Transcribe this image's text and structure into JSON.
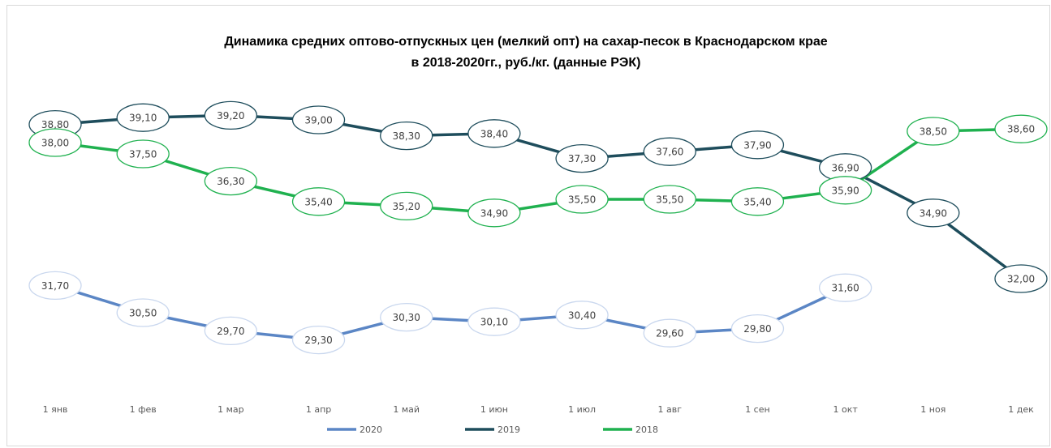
{
  "chart_data": {
    "type": "line",
    "title": [
      "Динамика средних оптово-отпускных цен (мелкий опт) на сахар-песок в Краснодарском крае",
      "в 2018-2020гг., руб./кг. (данные РЭК)"
    ],
    "categories": [
      "1 янв",
      "1 фев",
      "1 мар",
      "1 апр",
      "1 май",
      "1 июн",
      "1 июл",
      "1 авг",
      "1 сен",
      "1 окт",
      "1 ноя",
      "1 дек"
    ],
    "ylim": [
      27,
      41
    ],
    "legend": "bottom",
    "series": [
      {
        "name": "2020",
        "color": "#5b86c5",
        "label_border": "#c9d7ee",
        "values": [
          31.7,
          30.5,
          29.7,
          29.3,
          30.3,
          30.1,
          30.4,
          29.6,
          29.8,
          31.6,
          null,
          null
        ],
        "value_labels": [
          "31,70",
          "30,50",
          "29,70",
          "29,30",
          "30,30",
          "30,10",
          "30,40",
          "29,60",
          "29,80",
          "31,60",
          null,
          null
        ]
      },
      {
        "name": "2019",
        "color": "#1e4d5c",
        "label_border": "#1e4d5c",
        "values": [
          38.8,
          39.1,
          39.2,
          39.0,
          38.3,
          38.4,
          37.3,
          37.6,
          37.9,
          36.9,
          34.9,
          32.0
        ],
        "value_labels": [
          "38,80",
          "39,10",
          "39,20",
          "39,00",
          "38,30",
          "38,40",
          "37,30",
          "37,60",
          "37,90",
          "36,90",
          "34,90",
          "32,00"
        ]
      },
      {
        "name": "2018",
        "color": "#1fb14f",
        "label_border": "#1fb14f",
        "values": [
          38.0,
          37.5,
          36.3,
          35.4,
          35.2,
          34.9,
          35.5,
          35.5,
          35.4,
          35.9,
          38.5,
          38.6
        ],
        "value_labels": [
          "38,00",
          "37,50",
          "36,30",
          "35,40",
          "35,20",
          "34,90",
          "35,50",
          "35,50",
          "35,40",
          "35,90",
          "38,50",
          "38,60"
        ]
      }
    ]
  }
}
